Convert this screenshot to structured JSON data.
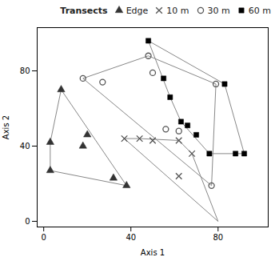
{
  "chart_data": {
    "type": "scatter",
    "xlabel": "Axis 1",
    "ylabel": "Axis 2",
    "xlim": [
      -3,
      103
    ],
    "ylim": [
      -3,
      103
    ],
    "xticks": [
      0,
      40,
      80
    ],
    "yticks": [
      0,
      40,
      80
    ],
    "legend": "upper right",
    "legend_title": "Transects",
    "hull_color": "#888888",
    "series": [
      {
        "name": "Edge",
        "color": "#333333",
        "marker": "triangle",
        "x": [
          3,
          8,
          3,
          20,
          18,
          32,
          38
        ],
        "values": [
          42,
          70,
          27,
          46,
          40,
          23,
          19
        ]
      },
      {
        "name": "10 m",
        "color": "#555555",
        "marker": "x",
        "x": [
          37,
          44,
          50,
          62,
          68,
          62
        ],
        "values": [
          44,
          44,
          43,
          43,
          36,
          24
        ],
        "hull_extra": [
          [
            80,
            0
          ]
        ]
      },
      {
        "name": "30 m",
        "color": "#555555",
        "marker": "circle",
        "x": [
          18,
          27,
          48,
          50,
          56,
          62,
          79,
          77
        ],
        "values": [
          76,
          74,
          88,
          79,
          49,
          48,
          73,
          19
        ]
      },
      {
        "name": "60 m",
        "color": "#000000",
        "marker": "square",
        "x": [
          48,
          55,
          58,
          63,
          66,
          70,
          76,
          83,
          88,
          92
        ],
        "values": [
          96,
          76,
          66,
          53,
          51,
          46,
          36,
          73,
          36,
          36
        ]
      }
    ]
  }
}
